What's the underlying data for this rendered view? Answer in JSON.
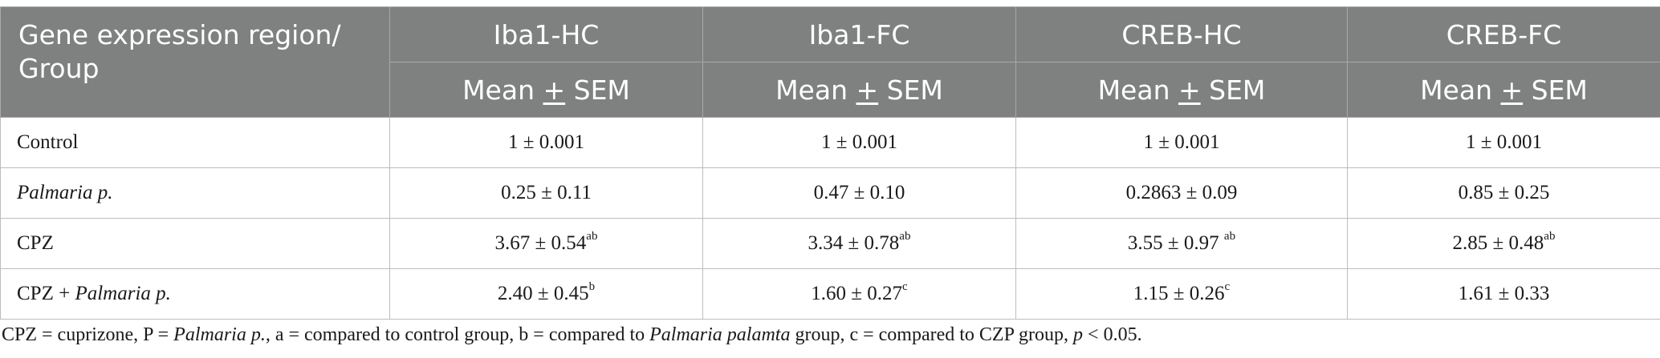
{
  "header": {
    "first_col": "Gene expression region/ Group",
    "columns": [
      "Iba1-HC",
      "Iba1-FC",
      "CREB-HC",
      "CREB-FC"
    ],
    "subheader": {
      "pre": "Mean ",
      "pm": "+",
      "post": " SEM"
    }
  },
  "rows": [
    {
      "label": "Control",
      "cells": [
        {
          "v": "1 ± 0.001",
          "s": ""
        },
        {
          "v": "1 ± 0.001",
          "s": ""
        },
        {
          "v": "1 ± 0.001",
          "s": ""
        },
        {
          "v": "1 ± 0.001",
          "s": ""
        }
      ]
    },
    {
      "label_it": "Palmaria p.",
      "cells": [
        {
          "v": "0.25 ± 0.11",
          "s": ""
        },
        {
          "v": "0.47 ± 0.10",
          "s": ""
        },
        {
          "v": "0.2863 ± 0.09",
          "s": ""
        },
        {
          "v": "0.85 ± 0.25",
          "s": ""
        }
      ]
    },
    {
      "label": "CPZ",
      "cells": [
        {
          "v": "3.67 ± 0.54",
          "s": "ab"
        },
        {
          "v": "3.34 ± 0.78",
          "s": "ab"
        },
        {
          "v": "3.55 ± 0.97 ",
          "s": "ab"
        },
        {
          "v": "2.85 ± 0.48",
          "s": "ab"
        }
      ]
    },
    {
      "label": "CPZ + ",
      "label_it": "Palmaria p.",
      "cells": [
        {
          "v": "2.40 ± 0.45",
          "s": "b"
        },
        {
          "v": "1.60 ± 0.27",
          "s": "c"
        },
        {
          "v": "1.15 ± 0.26",
          "s": "c"
        },
        {
          "v": "1.61 ± 0.33",
          "s": ""
        }
      ]
    }
  ],
  "footnote": {
    "part1": "CPZ = cuprizone, P = ",
    "part2_it": "Palmaria p.",
    "part3": ", a = compared to control group, b = compared to ",
    "part4_it": "Palmaria palamta",
    "part5": " group, c = compared to CZP group, ",
    "part6_it": "p",
    "part7": " < 0.05."
  }
}
